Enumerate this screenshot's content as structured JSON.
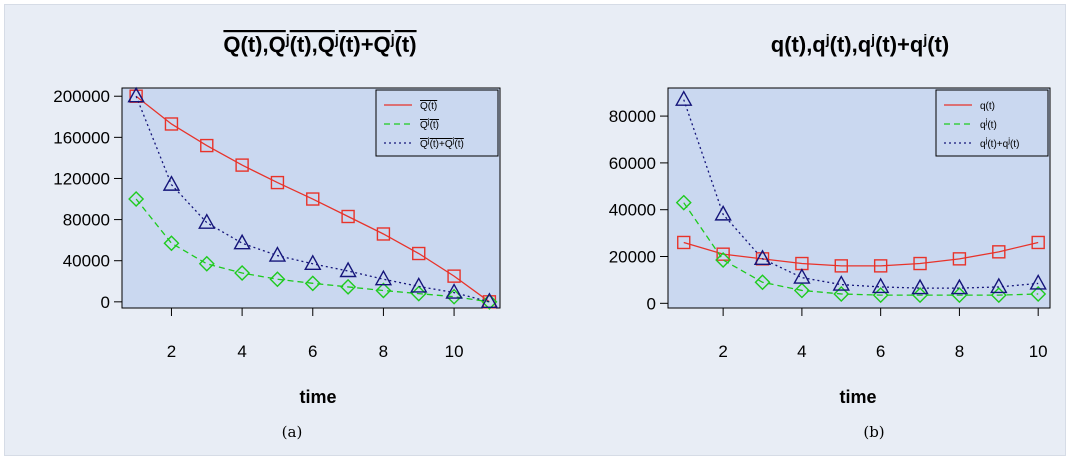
{
  "colors": {
    "frame_bg": "#e8edf5",
    "plot_bg": "#cad8f0",
    "red": "#e8332a",
    "green": "#1ecb1e",
    "navy": "#15157a"
  },
  "chart_data": [
    {
      "type": "line",
      "title": "Q(t),Q^j(t),Q^j(t)+Q^j(t)",
      "xlabel": "time",
      "ylabel": "",
      "caption": "(a)",
      "xlim": [
        0.6,
        11.3
      ],
      "ylim": [
        -6000,
        208000
      ],
      "xticks": [
        2,
        4,
        6,
        8,
        10
      ],
      "yticks": [
        0,
        40000,
        80000,
        120000,
        160000,
        200000
      ],
      "ytick_labels": [
        "0",
        "40000",
        "80000",
        "120000",
        "160000",
        "200000"
      ],
      "grid": false,
      "legend_position": "top-right",
      "x": [
        1,
        2,
        3,
        4,
        5,
        6,
        7,
        8,
        9,
        10,
        11
      ],
      "series": [
        {
          "name": "Q(t)",
          "color": "#e8332a",
          "dash": "solid",
          "marker": "square",
          "values": [
            200000,
            173000,
            152000,
            133000,
            116000,
            100000,
            83000,
            66000,
            47000,
            25000,
            0
          ]
        },
        {
          "name": "Q^j(t)",
          "color": "#1ecb1e",
          "dash": "dashed",
          "marker": "diamond",
          "values": [
            100000,
            57000,
            37000,
            28000,
            22000,
            18000,
            14500,
            11000,
            8000,
            5000,
            0
          ]
        },
        {
          "name": "Q^j(t)+Q^j(t)",
          "color": "#15157a",
          "dash": "dotted",
          "marker": "triangle",
          "values": [
            200000,
            114000,
            77000,
            57000,
            45000,
            37000,
            30000,
            22000,
            15000,
            9000,
            0
          ]
        }
      ]
    },
    {
      "type": "line",
      "title": "q(t),q^j(t),q^j(t)+q^j(t)",
      "xlabel": "time",
      "ylabel": "",
      "caption": "(b)",
      "xlim": [
        0.6,
        10.3
      ],
      "ylim": [
        -2000,
        92000
      ],
      "xticks": [
        2,
        4,
        6,
        8,
        10
      ],
      "yticks": [
        0,
        20000,
        40000,
        60000,
        80000
      ],
      "ytick_labels": [
        "0",
        "20000",
        "40000",
        "60000",
        "80000"
      ],
      "grid": false,
      "legend_position": "top-right",
      "x": [
        1,
        2,
        3,
        4,
        5,
        6,
        7,
        8,
        9,
        10
      ],
      "series": [
        {
          "name": "q(t)",
          "color": "#e8332a",
          "dash": "solid",
          "marker": "square",
          "values": [
            26000,
            21000,
            19000,
            17000,
            16000,
            16000,
            17000,
            19000,
            22000,
            26000
          ]
        },
        {
          "name": "q^j(t)",
          "color": "#1ecb1e",
          "dash": "dashed",
          "marker": "diamond",
          "values": [
            43000,
            18500,
            9000,
            5500,
            4000,
            3500,
            3500,
            3500,
            3500,
            4000
          ]
        },
        {
          "name": "q^j(t)+q^j(t)",
          "color": "#15157a",
          "dash": "dotted",
          "marker": "triangle",
          "values": [
            87000,
            38000,
            19000,
            11000,
            8000,
            7000,
            6500,
            6500,
            7000,
            8500
          ]
        }
      ]
    }
  ]
}
